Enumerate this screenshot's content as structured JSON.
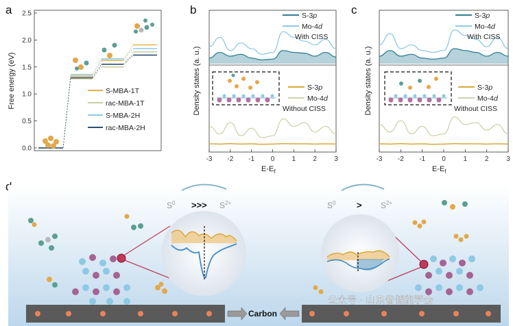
{
  "panels": {
    "a": "a",
    "b": "b",
    "c": "c",
    "d": "d"
  },
  "colors": {
    "s_mba_1t": "#e3b148",
    "rac_mba_1t": "#c9cda2",
    "s_mba_2h": "#8ec9e3",
    "rac_mba_2h": "#2b4f6e",
    "s3p_cis": "#2e7f94",
    "mo4d_cis": "#8ec9e3",
    "s3p_nocis": "#d9a73b",
    "mo4d_nocis": "#cfd1ad"
  },
  "chart_data": [
    {
      "id": "a",
      "type": "line",
      "title": "",
      "ylabel": "Free energy (eV)",
      "xlabel": "",
      "ylim": [
        0,
        2.5
      ],
      "yticks": [
        "0.0",
        "0.5",
        "1.0",
        "1.5",
        "2.0",
        "2.5"
      ],
      "series": [
        {
          "name": "S-MBA-1T",
          "values": [
            0.0,
            1.33,
            1.62,
            1.91
          ]
        },
        {
          "name": "rac-MBA-1T",
          "values": [
            0.0,
            1.28,
            1.5,
            1.78
          ]
        },
        {
          "name": "S-MBA-2H",
          "values": [
            0.0,
            1.36,
            1.65,
            1.84
          ]
        },
        {
          "name": "rac-MBA-2H",
          "values": [
            0.0,
            1.3,
            1.55,
            1.72
          ]
        }
      ]
    },
    {
      "id": "b",
      "type": "line",
      "ylabel": "Density states (a. u.)",
      "xlabel_main": "E-E",
      "xlabel_sub": "f",
      "xlim": [
        -3,
        3
      ],
      "xticks": [
        "-3",
        "-2",
        "-1",
        "0",
        "1",
        "2",
        "3"
      ],
      "top_legend": {
        "s3p": "S-3",
        "s3p_sub": "p",
        "mo4d": "Mo-4",
        "mo4d_sub": "d",
        "note": "With CISS"
      },
      "bottom_legend": {
        "s3p": "S-3",
        "s3p_sub": "p",
        "mo4d": "Mo-4",
        "mo4d_sub": "d",
        "note": "Without CISS"
      },
      "x": [
        -3,
        -2.5,
        -2,
        -1.5,
        -1,
        -0.5,
        0,
        0.5,
        1,
        1.5,
        2,
        2.5,
        3
      ],
      "with_ciss": {
        "mo4d": [
          0.45,
          0.7,
          0.35,
          0.55,
          0.4,
          0.25,
          0.3,
          0.85,
          0.7,
          0.6,
          0.5,
          0.65,
          0.4
        ],
        "s3p": [
          0.15,
          0.3,
          0.2,
          0.25,
          0.15,
          0.1,
          0.12,
          0.35,
          0.3,
          0.28,
          0.2,
          0.3,
          0.18
        ]
      },
      "without_ciss": {
        "mo4d": [
          0.5,
          0.3,
          0.6,
          0.25,
          0.45,
          0.2,
          0.25,
          0.7,
          0.5,
          0.6,
          0.35,
          0.5,
          0.3
        ],
        "s3p": [
          0.06,
          0.05,
          0.07,
          0.05,
          0.06,
          0.04,
          0.05,
          0.07,
          0.06,
          0.06,
          0.05,
          0.06,
          0.05
        ]
      }
    },
    {
      "id": "c",
      "type": "line",
      "ylabel": "Density states (a. u.)",
      "xlabel_main": "E-E",
      "xlabel_sub": "f",
      "xlim": [
        -3,
        3
      ],
      "xticks": [
        "-3",
        "-2",
        "-1",
        "0",
        "1",
        "2",
        "3"
      ],
      "top_legend": {
        "s3p": "S-3",
        "s3p_sub": "p",
        "mo4d": "Mo-4",
        "mo4d_sub": "d",
        "note": "With CISS"
      },
      "bottom_legend": {
        "s3p": "S-3",
        "s3p_sub": "p",
        "mo4d": "Mo-4",
        "mo4d_sub": "d",
        "note": "Without CISS"
      },
      "x": [
        -3,
        -2.5,
        -2,
        -1.5,
        -1,
        -0.5,
        0,
        0.5,
        1,
        1.5,
        2,
        2.5,
        3
      ],
      "with_ciss": {
        "mo4d": [
          0.5,
          0.8,
          0.4,
          0.5,
          0.35,
          0.3,
          0.35,
          0.9,
          0.75,
          0.65,
          0.45,
          0.7,
          0.4
        ],
        "s3p": [
          0.2,
          0.35,
          0.2,
          0.25,
          0.15,
          0.12,
          0.15,
          0.4,
          0.35,
          0.3,
          0.2,
          0.3,
          0.2
        ]
      },
      "without_ciss": {
        "mo4d": [
          0.55,
          0.35,
          0.65,
          0.3,
          0.5,
          0.25,
          0.3,
          0.75,
          0.55,
          0.6,
          0.4,
          0.55,
          0.3
        ],
        "s3p": [
          0.06,
          0.05,
          0.07,
          0.05,
          0.06,
          0.04,
          0.05,
          0.07,
          0.06,
          0.06,
          0.05,
          0.06,
          0.05
        ]
      }
    }
  ],
  "schematic": {
    "left_s0": "S",
    "left_s0_sup": "0",
    "left_arrow": ">>>",
    "left_s2": "S",
    "left_s2_sup": "2+",
    "right_s0": "S",
    "right_s0_sup": "0",
    "right_arrow": ">",
    "right_s2": "S",
    "right_s2_sup": "2+",
    "carbon_label": "Carbon",
    "watermark": "公众号 · 山东省储能学会"
  }
}
